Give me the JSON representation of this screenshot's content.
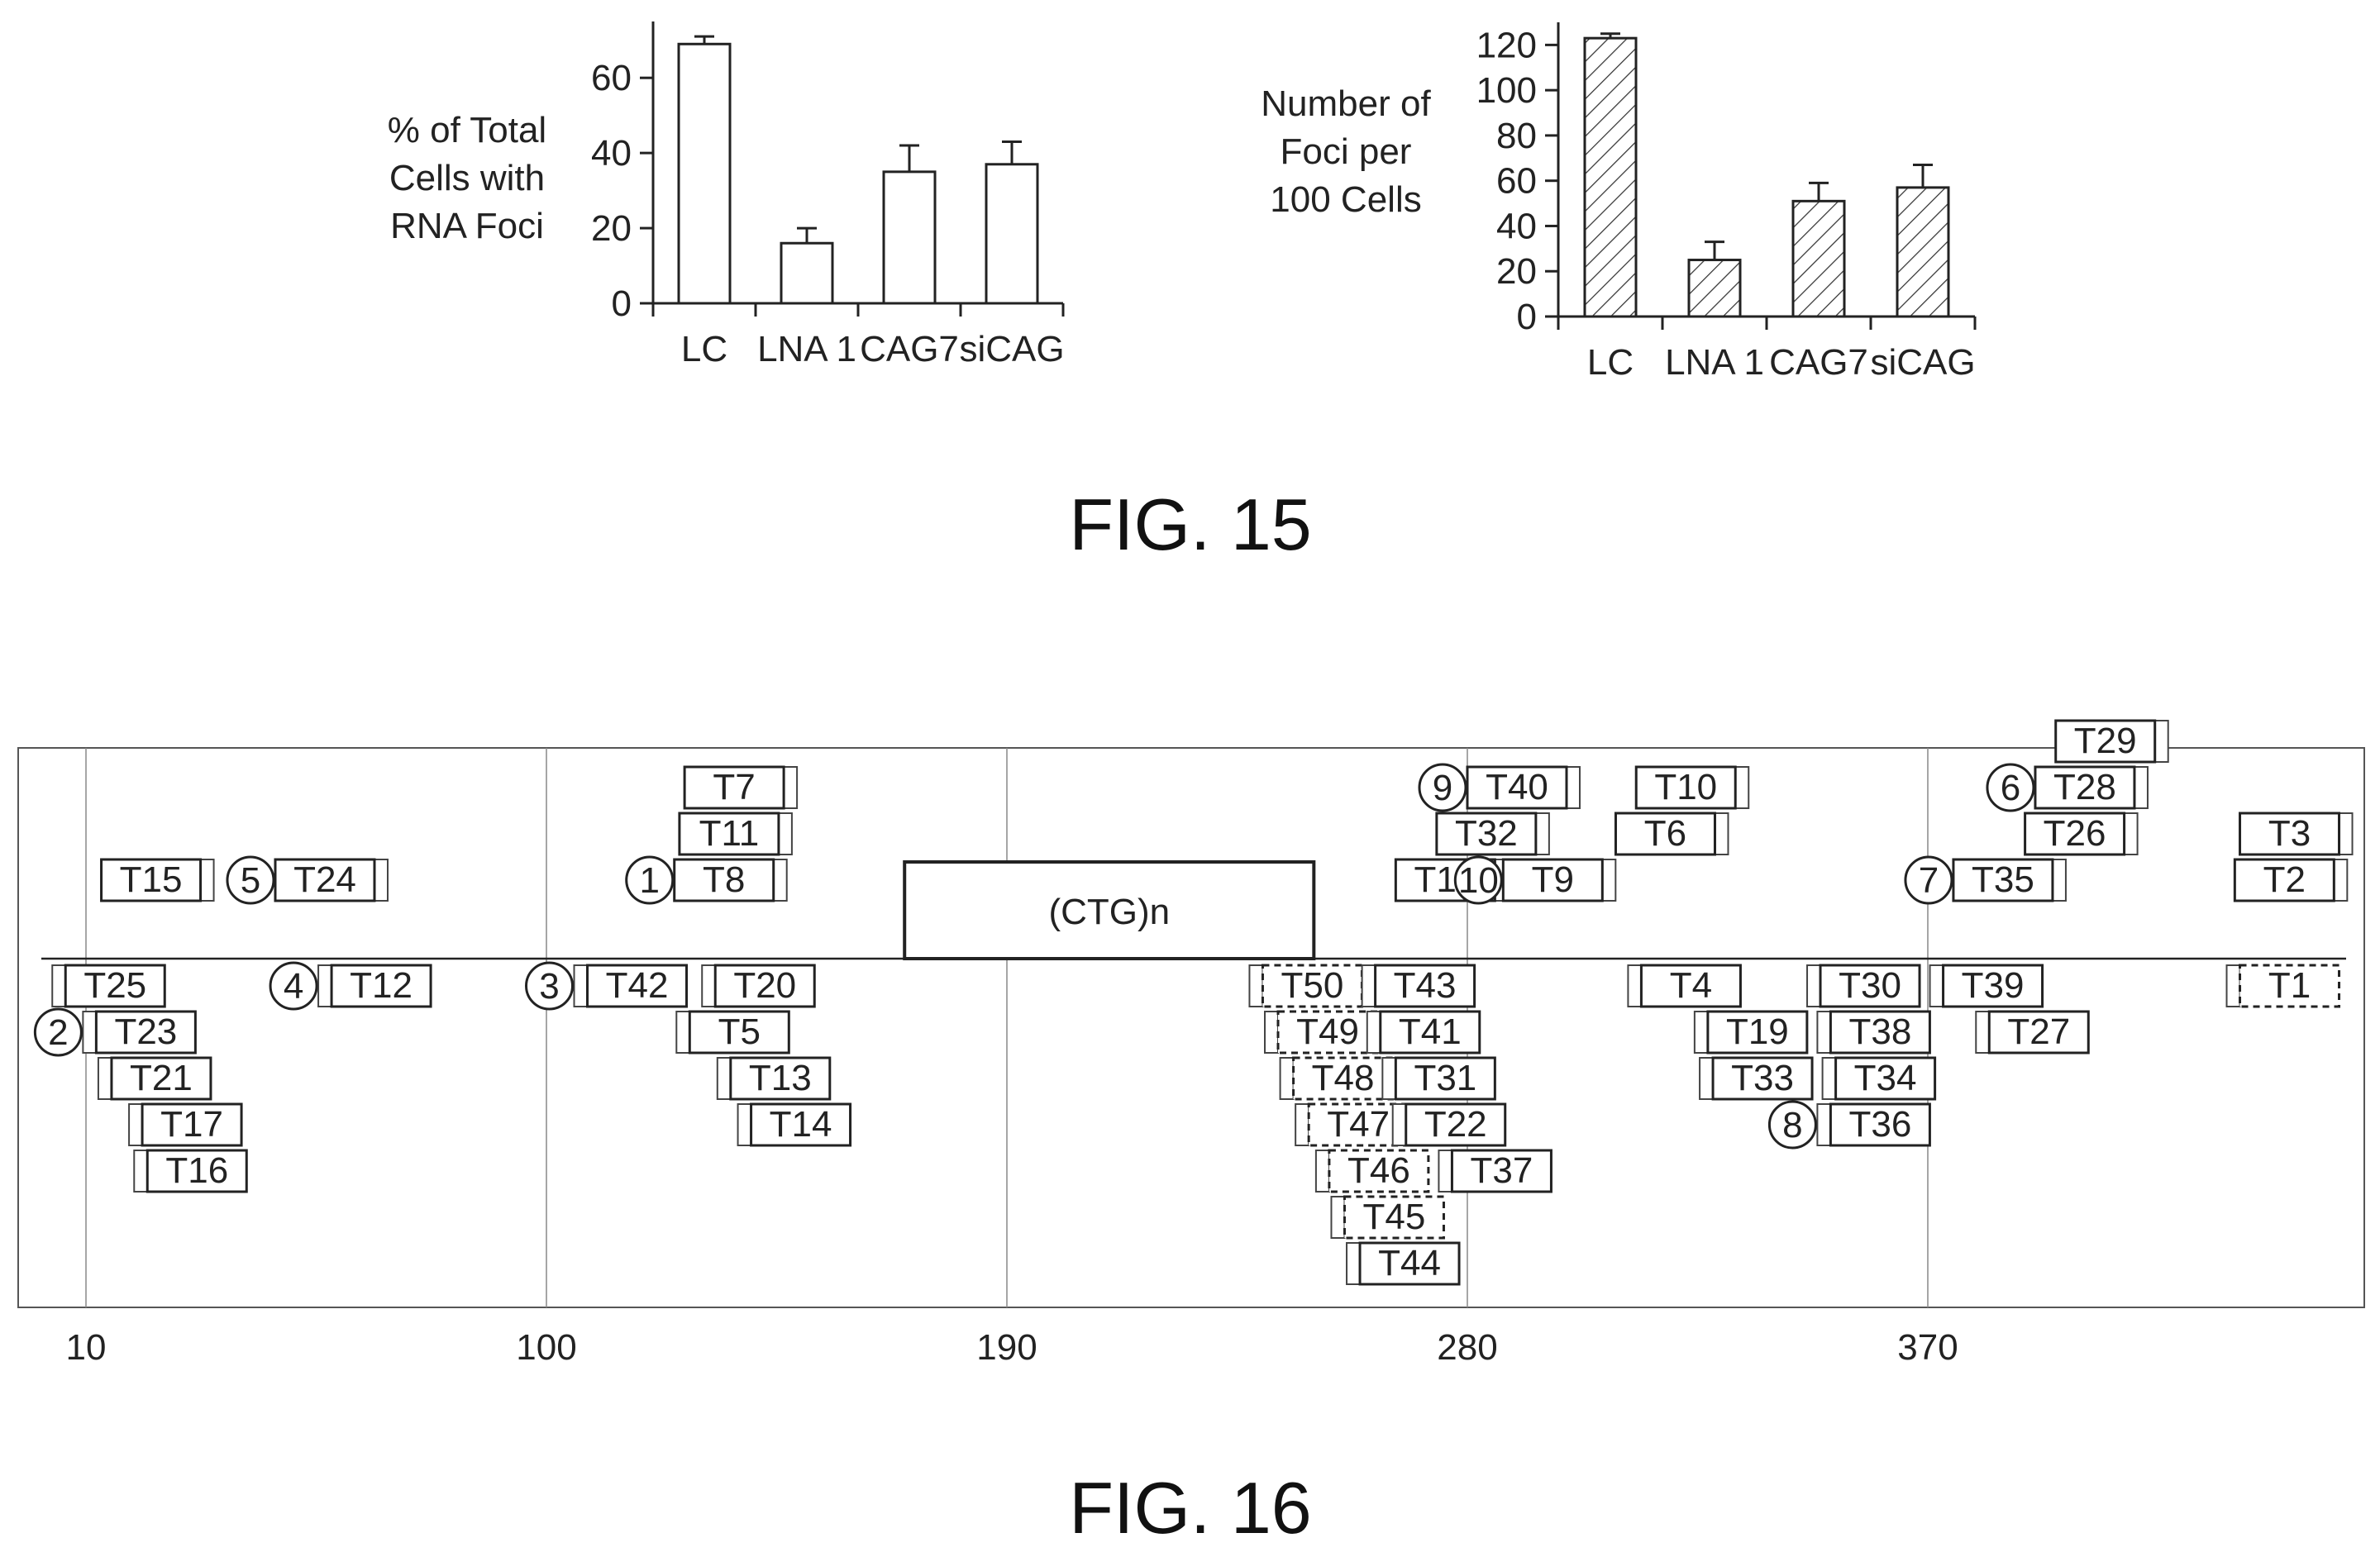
{
  "fig15": {
    "caption": "FIG. 15",
    "chart_data": [
      {
        "type": "bar",
        "ylabel": [
          "% of Total",
          "Cells with",
          "RNA Foci"
        ],
        "categories": [
          "LC",
          "LNA 1",
          "CAG7",
          "siCAG"
        ],
        "values": [
          69,
          16,
          35,
          37
        ],
        "errors": [
          2,
          4,
          7,
          6
        ],
        "yticks": [
          0,
          20,
          40,
          60
        ],
        "ylim": [
          0,
          75
        ],
        "fill": "open"
      },
      {
        "type": "bar",
        "ylabel": [
          "Number of",
          "Foci per",
          "100 Cells"
        ],
        "categories": [
          "LC",
          "LNA 1",
          "CAG7",
          "siCAG"
        ],
        "values": [
          123,
          25,
          51,
          57
        ],
        "errors": [
          2,
          8,
          8,
          10
        ],
        "yticks": [
          0,
          20,
          40,
          60,
          80,
          100,
          120
        ],
        "ylim": [
          0,
          130
        ],
        "fill": "hatched"
      }
    ]
  },
  "fig16": {
    "caption": "FIG. 16",
    "axis_ticks": [
      10,
      100,
      190,
      280,
      370
    ],
    "repeat_label": "(CTG)n",
    "top_targets": [
      {
        "label": "T29",
        "start": 395,
        "row": 5
      },
      {
        "label": "T7",
        "start": 127,
        "row": 4
      },
      {
        "label": "T40",
        "start": 280,
        "row": 4,
        "marker": "9"
      },
      {
        "label": "T10",
        "start": 313,
        "row": 4
      },
      {
        "label": "T28",
        "start": 391,
        "row": 4,
        "marker": "6"
      },
      {
        "label": "T11",
        "start": 126,
        "row": 3
      },
      {
        "label": "T32",
        "start": 274,
        "row": 3
      },
      {
        "label": "T6",
        "start": 309,
        "row": 3
      },
      {
        "label": "T26",
        "start": 389,
        "row": 3
      },
      {
        "label": "T3",
        "start": 431,
        "row": 3
      },
      {
        "label": "T15",
        "start": 13,
        "row": 2
      },
      {
        "label": "T24",
        "start": 47,
        "row": 2,
        "marker": "5"
      },
      {
        "label": "T8",
        "start": 125,
        "row": 2,
        "marker": "1"
      },
      {
        "label": "T18",
        "start": 266,
        "row": 2
      },
      {
        "label": "T9",
        "start": 287,
        "row": 2,
        "marker": "10"
      },
      {
        "label": "T35",
        "start": 375,
        "row": 2,
        "marker": "7"
      },
      {
        "label": "T2",
        "start": 430,
        "row": 2
      }
    ],
    "bottom_targets": [
      {
        "label": "T25",
        "start": 6,
        "row": 1
      },
      {
        "label": "T12",
        "start": 58,
        "row": 1,
        "marker": "4"
      },
      {
        "label": "T42",
        "start": 108,
        "row": 1,
        "marker": "3"
      },
      {
        "label": "T20",
        "start": 133,
        "row": 1
      },
      {
        "label": "T50",
        "start": 240,
        "row": 1,
        "dashed": true
      },
      {
        "label": "T43",
        "start": 262,
        "row": 1
      },
      {
        "label": "T4",
        "start": 314,
        "row": 1
      },
      {
        "label": "T30",
        "start": 349,
        "row": 1
      },
      {
        "label": "T39",
        "start": 373,
        "row": 1
      },
      {
        "label": "T1",
        "start": 431,
        "row": 1,
        "dashed": true
      },
      {
        "label": "T23",
        "start": 12,
        "row": 2,
        "marker": "2"
      },
      {
        "label": "T5",
        "start": 128,
        "row": 2
      },
      {
        "label": "T49",
        "start": 243,
        "row": 2,
        "dashed": true
      },
      {
        "label": "T41",
        "start": 263,
        "row": 2
      },
      {
        "label": "T19",
        "start": 327,
        "row": 2
      },
      {
        "label": "T38",
        "start": 351,
        "row": 2
      },
      {
        "label": "T27",
        "start": 382,
        "row": 2
      },
      {
        "label": "T21",
        "start": 15,
        "row": 3
      },
      {
        "label": "T13",
        "start": 136,
        "row": 3
      },
      {
        "label": "T48",
        "start": 246,
        "row": 3,
        "dashed": true
      },
      {
        "label": "T31",
        "start": 266,
        "row": 3
      },
      {
        "label": "T33",
        "start": 328,
        "row": 3
      },
      {
        "label": "T34",
        "start": 352,
        "row": 3
      },
      {
        "label": "T17",
        "start": 21,
        "row": 4
      },
      {
        "label": "T14",
        "start": 140,
        "row": 4
      },
      {
        "label": "T47",
        "start": 249,
        "row": 4,
        "dashed": true
      },
      {
        "label": "T22",
        "start": 268,
        "row": 4
      },
      {
        "label": "T36",
        "start": 351,
        "row": 4,
        "marker": "8"
      },
      {
        "label": "T16",
        "start": 22,
        "row": 5
      },
      {
        "label": "T46",
        "start": 253,
        "row": 5,
        "dashed": true
      },
      {
        "label": "T37",
        "start": 277,
        "row": 5
      },
      {
        "label": "T45",
        "start": 256,
        "row": 6,
        "dashed": true
      },
      {
        "label": "T44",
        "start": 259,
        "row": 7
      }
    ]
  }
}
